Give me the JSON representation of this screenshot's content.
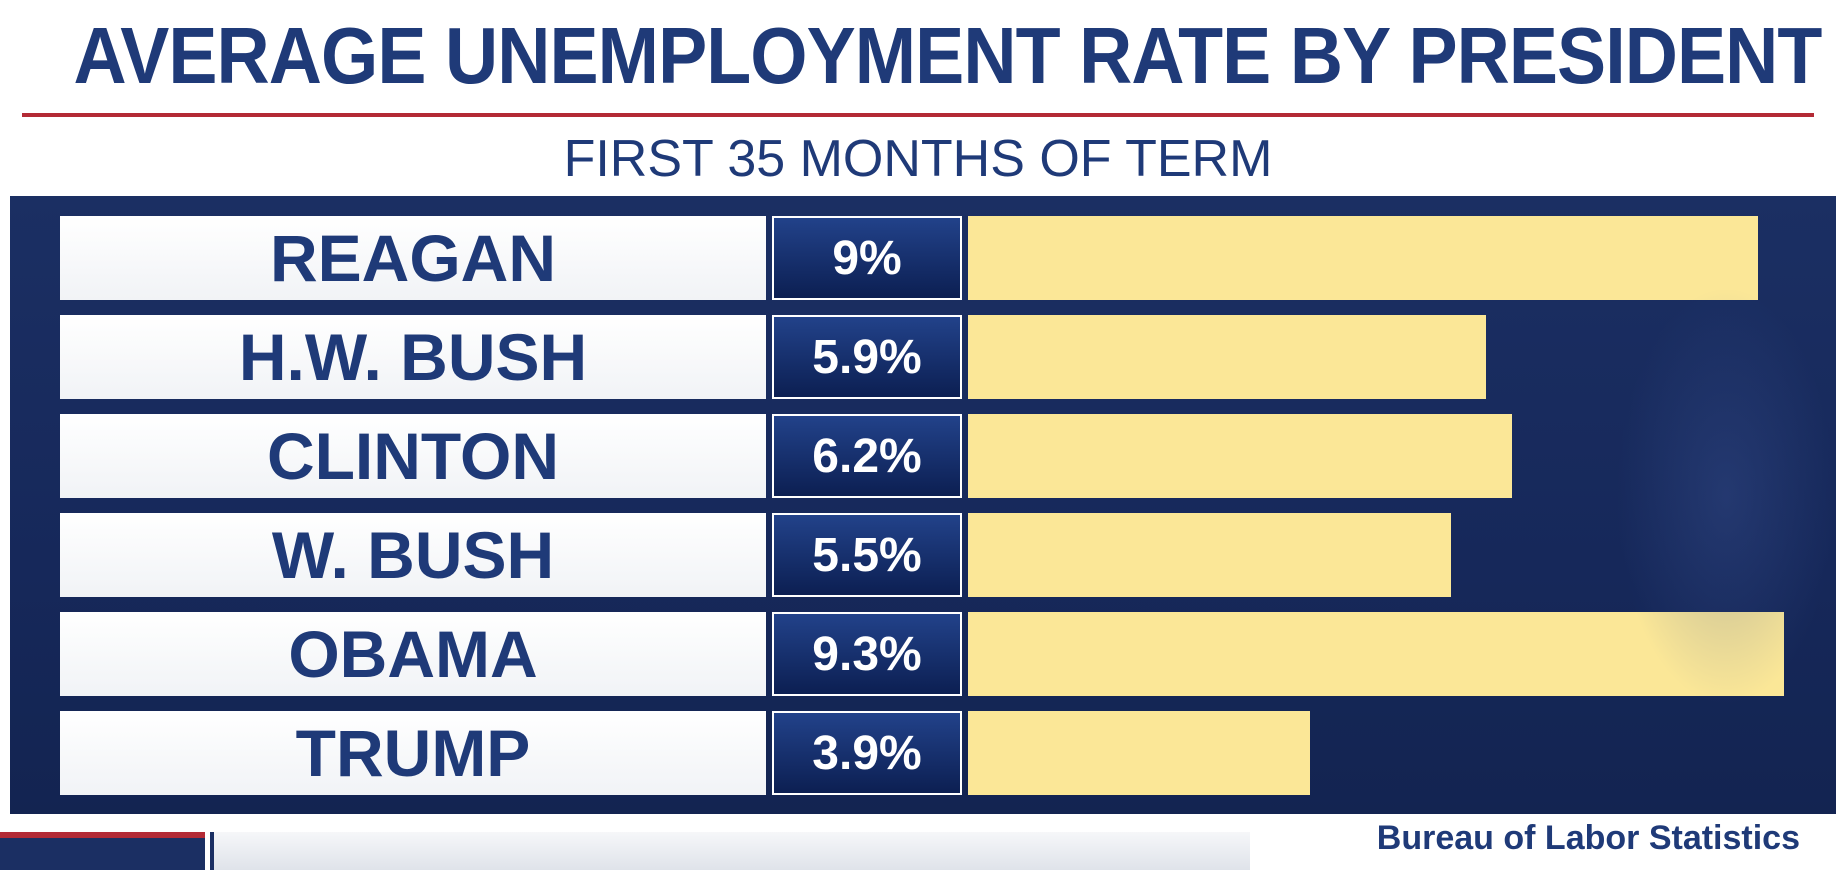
{
  "chart_data": {
    "type": "bar",
    "orientation": "horizontal",
    "title": "AVERAGE UNEMPLOYMENT RATE BY PRESIDENT",
    "subtitle": "FIRST 35 MONTHS OF TERM",
    "categories": [
      "REAGAN",
      "H.W. BUSH",
      "CLINTON",
      "W. BUSH",
      "OBAMA",
      "TRUMP"
    ],
    "values": [
      9,
      5.9,
      6.2,
      5.5,
      9.3,
      3.9
    ],
    "value_labels": [
      "9%",
      "5.9%",
      "6.2%",
      "5.5%",
      "9.3%",
      "3.9%"
    ],
    "unit": "%",
    "xlim": [
      0,
      9.3
    ],
    "grid": false,
    "legend": "none",
    "bar_color": "#fbe797",
    "source": "Bureau of Labor Statistics"
  },
  "colors": {
    "title": "#1f3a78",
    "rule": "#b32a35",
    "panel": "#1b2f63",
    "bar": "#fbe797"
  }
}
